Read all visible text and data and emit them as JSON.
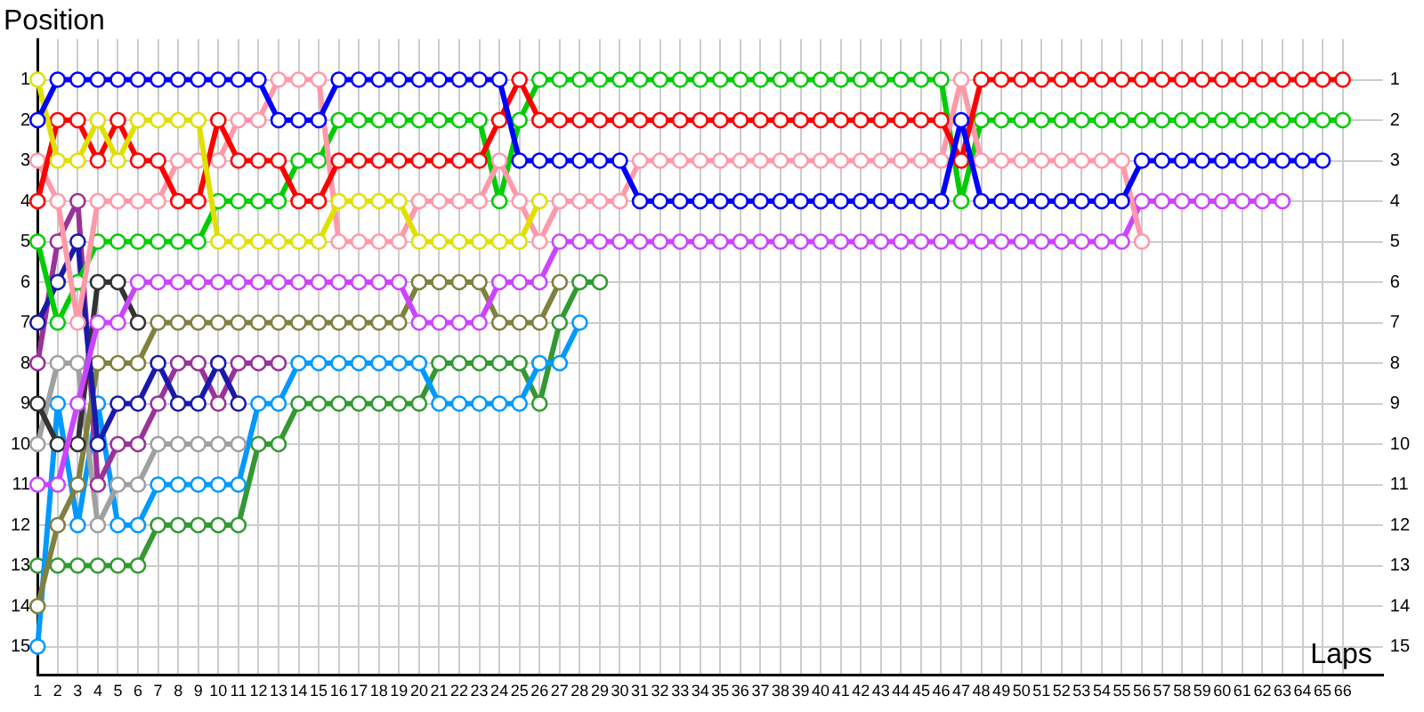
{
  "chart_data": {
    "type": "line",
    "xlabel": "Laps",
    "ylabel": "Position",
    "marker": "circle",
    "grid": true,
    "xlim": [
      1,
      68
    ],
    "xticks": [
      1,
      2,
      3,
      4,
      5,
      6,
      7,
      8,
      9,
      10,
      11,
      12,
      13,
      14,
      15,
      16,
      17,
      18,
      19,
      20,
      21,
      22,
      23,
      24,
      25,
      26,
      27,
      28,
      29,
      30,
      31,
      32,
      33,
      34,
      35,
      36,
      37,
      38,
      39,
      40,
      41,
      42,
      43,
      44,
      45,
      46,
      47,
      48,
      49,
      50,
      51,
      52,
      53,
      54,
      55,
      56,
      57,
      58,
      59,
      60,
      61,
      62,
      63,
      64,
      65,
      66
    ],
    "ylim": [
      15.7,
      0
    ],
    "yticks": [
      1,
      2,
      3,
      4,
      5,
      6,
      7,
      8,
      9,
      10,
      11,
      12,
      13,
      14,
      15
    ],
    "y2lim": [
      15.7,
      0
    ],
    "y2ticks": [
      1,
      2,
      3,
      4,
      5,
      6,
      7,
      8,
      9,
      10,
      11,
      12,
      13,
      14,
      15
    ],
    "x": [
      1,
      2,
      3,
      4,
      5,
      6,
      7,
      8,
      9,
      10,
      11,
      12,
      13,
      14,
      15,
      16,
      17,
      18,
      19,
      20,
      21,
      22,
      23,
      24,
      25,
      26,
      27,
      28,
      29,
      30,
      31,
      32,
      33,
      34,
      35,
      36,
      37,
      38,
      39,
      40,
      41,
      42,
      43,
      44,
      45,
      46,
      47,
      48,
      49,
      50,
      51,
      52,
      53,
      54,
      55,
      56,
      57,
      58,
      59,
      60,
      61,
      62,
      63,
      64,
      65,
      66
    ],
    "series": [
      {
        "color": "#0000ff",
        "values": [
          2,
          1,
          1,
          1,
          1,
          1,
          1,
          1,
          1,
          1,
          1,
          1,
          2,
          2,
          2,
          1,
          1,
          1,
          1,
          1,
          1,
          1,
          1,
          1,
          3,
          3,
          3,
          3,
          3,
          3,
          4,
          4,
          4,
          4,
          4,
          4,
          4,
          4,
          4,
          4,
          4,
          4,
          4,
          4,
          4,
          4,
          2,
          4,
          4,
          4,
          4,
          4,
          4,
          4,
          4,
          3,
          3,
          3,
          3,
          3,
          3,
          3,
          3,
          3,
          3,
          null
        ]
      },
      {
        "color": "#e0e000",
        "values": [
          1,
          3,
          3,
          2,
          3,
          2,
          2,
          2,
          2,
          5,
          5,
          5,
          5,
          5,
          5,
          4,
          4,
          4,
          4,
          5,
          5,
          5,
          5,
          5,
          5,
          4,
          null,
          null,
          null,
          null,
          null,
          null,
          null,
          null,
          null,
          null,
          null,
          null,
          null,
          null,
          null,
          null,
          null,
          null,
          null,
          null,
          null,
          null,
          null,
          null,
          null,
          null,
          null,
          null,
          null,
          null,
          null,
          null,
          null,
          null,
          null,
          null,
          null,
          null,
          null,
          null
        ]
      },
      {
        "color": "#ff0000",
        "values": [
          4,
          2,
          2,
          3,
          2,
          3,
          3,
          4,
          4,
          2,
          3,
          3,
          3,
          4,
          4,
          3,
          3,
          3,
          3,
          3,
          3,
          3,
          3,
          2,
          1,
          2,
          2,
          2,
          2,
          2,
          2,
          2,
          2,
          2,
          2,
          2,
          2,
          2,
          2,
          2,
          2,
          2,
          2,
          2,
          2,
          2,
          3,
          1,
          1,
          1,
          1,
          1,
          1,
          1,
          1,
          1,
          1,
          1,
          1,
          1,
          1,
          1,
          1,
          1,
          1,
          1
        ]
      },
      {
        "color": "#ff99aa",
        "values": [
          3,
          4,
          7,
          4,
          4,
          4,
          4,
          3,
          3,
          3,
          2,
          2,
          1,
          1,
          1,
          5,
          5,
          5,
          5,
          4,
          4,
          4,
          4,
          3,
          4,
          5,
          4,
          4,
          4,
          4,
          3,
          3,
          3,
          3,
          3,
          3,
          3,
          3,
          3,
          3,
          3,
          3,
          3,
          3,
          3,
          3,
          1,
          3,
          3,
          3,
          3,
          3,
          3,
          3,
          3,
          5,
          null,
          null,
          null,
          null,
          null,
          null,
          null,
          null,
          null,
          null
        ]
      },
      {
        "color": "#00cc00",
        "values": [
          5,
          7,
          6,
          5,
          5,
          5,
          5,
          5,
          5,
          4,
          4,
          4,
          4,
          3,
          3,
          2,
          2,
          2,
          2,
          2,
          2,
          2,
          2,
          4,
          2,
          1,
          1,
          1,
          1,
          1,
          1,
          1,
          1,
          1,
          1,
          1,
          1,
          1,
          1,
          1,
          1,
          1,
          1,
          1,
          1,
          1,
          4,
          2,
          2,
          2,
          2,
          2,
          2,
          2,
          2,
          2,
          2,
          2,
          2,
          2,
          2,
          2,
          2,
          2,
          2,
          2
        ]
      },
      {
        "color": "#cc44ff",
        "values": [
          11,
          11,
          9,
          7,
          7,
          6,
          6,
          6,
          6,
          6,
          6,
          6,
          6,
          6,
          6,
          6,
          6,
          6,
          6,
          7,
          7,
          7,
          7,
          6,
          6,
          6,
          5,
          5,
          5,
          5,
          5,
          5,
          5,
          5,
          5,
          5,
          5,
          5,
          5,
          5,
          5,
          5,
          5,
          5,
          5,
          5,
          5,
          5,
          5,
          5,
          5,
          5,
          5,
          5,
          5,
          4,
          4,
          4,
          4,
          4,
          4,
          4,
          4,
          null,
          null,
          null
        ]
      },
      {
        "color": "#1a1aaa",
        "values": [
          7,
          6,
          5,
          10,
          9,
          9,
          8,
          9,
          9,
          8,
          9,
          null,
          null,
          null,
          null,
          null,
          null,
          null,
          null,
          null,
          null,
          null,
          null,
          null,
          null,
          null,
          null,
          null,
          null,
          null,
          null,
          null,
          null,
          null,
          null,
          null,
          null,
          null,
          null,
          null,
          null,
          null,
          null,
          null,
          null,
          null,
          null,
          null,
          null,
          null,
          null,
          null,
          null,
          null,
          null,
          null,
          null,
          null,
          null,
          null,
          null,
          null,
          null,
          null,
          null,
          null
        ]
      },
      {
        "color": "#333333",
        "values": [
          9,
          10,
          10,
          6,
          6,
          7,
          null,
          null,
          null,
          null,
          null,
          null,
          null,
          null,
          null,
          null,
          null,
          null,
          null,
          null,
          null,
          null,
          null,
          null,
          null,
          null,
          null,
          null,
          null,
          null,
          null,
          null,
          null,
          null,
          null,
          null,
          null,
          null,
          null,
          null,
          null,
          null,
          null,
          null,
          null,
          null,
          null,
          null,
          null,
          null,
          null,
          null,
          null,
          null,
          null,
          null,
          null,
          null,
          null,
          null,
          null,
          null,
          null,
          null,
          null,
          null
        ]
      },
      {
        "color": "#808040",
        "values": [
          14,
          12,
          11,
          8,
          8,
          8,
          7,
          7,
          7,
          7,
          7,
          7,
          7,
          7,
          7,
          7,
          7,
          7,
          7,
          6,
          6,
          6,
          6,
          7,
          7,
          7,
          6,
          null,
          null,
          null,
          null,
          null,
          null,
          null,
          null,
          null,
          null,
          null,
          null,
          null,
          null,
          null,
          null,
          null,
          null,
          null,
          null,
          null,
          null,
          null,
          null,
          null,
          null,
          null,
          null,
          null,
          null,
          null,
          null,
          null,
          null,
          null,
          null,
          null,
          null,
          null
        ]
      },
      {
        "color": "#993399",
        "values": [
          8,
          5,
          4,
          11,
          10,
          10,
          9,
          8,
          8,
          9,
          8,
          8,
          8,
          null,
          null,
          null,
          null,
          null,
          null,
          null,
          null,
          null,
          null,
          null,
          null,
          null,
          null,
          null,
          null,
          null,
          null,
          null,
          null,
          null,
          null,
          null,
          null,
          null,
          null,
          null,
          null,
          null,
          null,
          null,
          null,
          null,
          null,
          null,
          null,
          null,
          null,
          null,
          null,
          null,
          null,
          null,
          null,
          null,
          null,
          null,
          null,
          null,
          null,
          null,
          null,
          null
        ]
      },
      {
        "color": "#a0a0a0",
        "values": [
          10,
          8,
          8,
          12,
          11,
          11,
          10,
          10,
          10,
          10,
          10,
          null,
          null,
          null,
          null,
          null,
          null,
          null,
          null,
          null,
          null,
          null,
          null,
          null,
          null,
          null,
          null,
          null,
          null,
          null,
          null,
          null,
          null,
          null,
          null,
          null,
          null,
          null,
          null,
          null,
          null,
          null,
          null,
          null,
          null,
          null,
          null,
          null,
          null,
          null,
          null,
          null,
          null,
          null,
          null,
          null,
          null,
          null,
          null,
          null,
          null,
          null,
          null,
          null,
          null,
          null
        ]
      },
      {
        "color": "#0099ff",
        "values": [
          15,
          9,
          12,
          9,
          12,
          12,
          11,
          11,
          11,
          11,
          11,
          9,
          9,
          8,
          8,
          8,
          8,
          8,
          8,
          8,
          9,
          9,
          9,
          9,
          9,
          8,
          8,
          7,
          null,
          null,
          null,
          null,
          null,
          null,
          null,
          null,
          null,
          null,
          null,
          null,
          null,
          null,
          null,
          null,
          null,
          null,
          null,
          null,
          null,
          null,
          null,
          null,
          null,
          null,
          null,
          null,
          null,
          null,
          null,
          null,
          null,
          null,
          null,
          null,
          null,
          null
        ]
      },
      {
        "color": "#339933",
        "values": [
          13,
          13,
          13,
          13,
          13,
          13,
          12,
          12,
          12,
          12,
          12,
          10,
          10,
          9,
          9,
          9,
          9,
          9,
          9,
          9,
          8,
          8,
          8,
          8,
          8,
          9,
          7,
          6,
          6,
          null,
          null,
          null,
          null,
          null,
          null,
          null,
          null,
          null,
          null,
          null,
          null,
          null,
          null,
          null,
          null,
          null,
          null,
          null,
          null,
          null,
          null,
          null,
          null,
          null,
          null,
          null,
          null,
          null,
          null,
          null,
          null,
          null,
          null,
          null,
          null,
          null
        ]
      }
    ]
  }
}
